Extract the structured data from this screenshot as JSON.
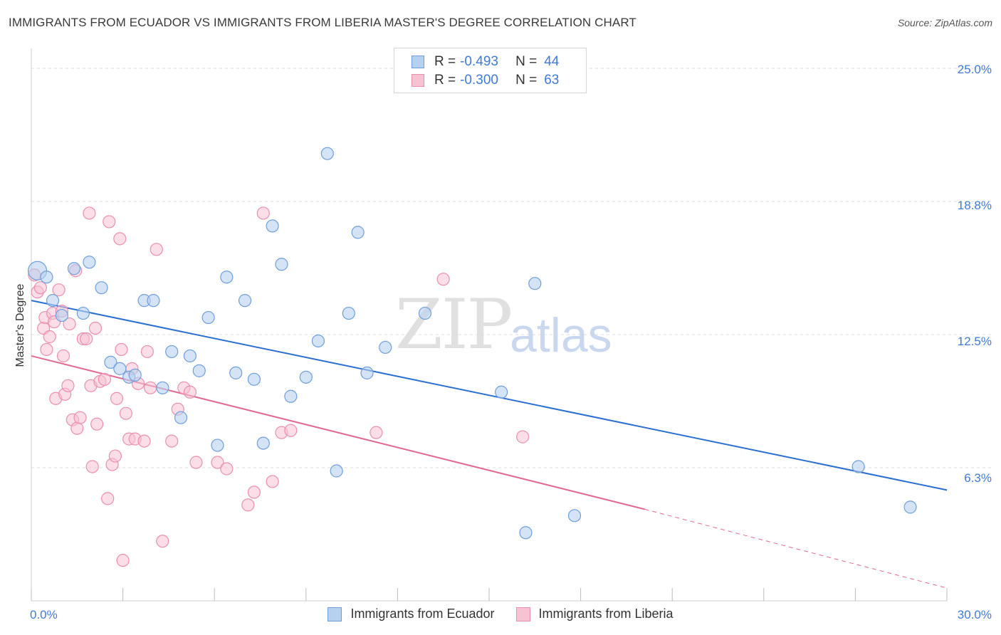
{
  "header": {
    "title": "IMMIGRANTS FROM ECUADOR VS IMMIGRANTS FROM LIBERIA MASTER'S DEGREE CORRELATION CHART",
    "source": "Source: ZipAtlas.com"
  },
  "watermark": {
    "zip": "ZIP",
    "atlas": "atlas"
  },
  "legend": {
    "rows": [
      {
        "r_label": "R =",
        "r_value": "-0.493",
        "n_label": "N =",
        "n_value": "44"
      },
      {
        "r_label": "R =",
        "r_value": "-0.300",
        "n_label": "N =",
        "n_value": "63"
      }
    ]
  },
  "bottom_legend": {
    "ecuador": "Immigrants from Ecuador",
    "liberia": "Immigrants from Liberia"
  },
  "axis": {
    "ylabel": "Master's Degree",
    "y_ticks": [
      "25.0%",
      "18.8%",
      "12.5%",
      "6.3%"
    ],
    "x_min_label": "0.0%",
    "x_max_label": "30.0%"
  },
  "colors": {
    "ecuador_fill": "#b8d0f0",
    "ecuador_stroke": "#6f9fd8",
    "ecuador_line": "#2b6fd0",
    "liberia_fill": "#f7c3d3",
    "liberia_stroke": "#e98fae",
    "liberia_line": "#e06a93",
    "grid": "#dcdcdc",
    "tick_text": "#3f7ad4"
  },
  "chart_data": {
    "type": "scatter",
    "title": "IMMIGRANTS FROM ECUADOR VS IMMIGRANTS FROM LIBERIA MASTER'S DEGREE CORRELATION CHART",
    "xlabel": "",
    "ylabel": "Master's Degree",
    "xlim": [
      0,
      30
    ],
    "ylim": [
      0,
      25
    ],
    "y_gridlines": [
      6.25,
      12.5,
      18.75,
      25.0
    ],
    "grid": true,
    "series": [
      {
        "name": "Immigrants from Ecuador",
        "r": -0.493,
        "n": 44,
        "trend": {
          "x": [
            0,
            30
          ],
          "y": [
            14.1,
            5.2
          ]
        },
        "points": [
          [
            0.2,
            15.5
          ],
          [
            0.5,
            15.2
          ],
          [
            0.7,
            14.1
          ],
          [
            1.0,
            13.4
          ],
          [
            1.4,
            15.6
          ],
          [
            1.7,
            13.5
          ],
          [
            1.9,
            15.9
          ],
          [
            2.3,
            14.7
          ],
          [
            2.6,
            11.2
          ],
          [
            2.9,
            10.9
          ],
          [
            3.2,
            10.5
          ],
          [
            3.4,
            10.6
          ],
          [
            3.7,
            14.1
          ],
          [
            4.0,
            14.1
          ],
          [
            4.3,
            10.0
          ],
          [
            4.6,
            11.7
          ],
          [
            4.9,
            8.6
          ],
          [
            5.2,
            11.5
          ],
          [
            5.5,
            10.8
          ],
          [
            5.8,
            13.3
          ],
          [
            6.1,
            7.3
          ],
          [
            6.4,
            15.2
          ],
          [
            6.7,
            10.7
          ],
          [
            7.0,
            14.1
          ],
          [
            7.3,
            10.4
          ],
          [
            7.6,
            7.4
          ],
          [
            7.9,
            17.6
          ],
          [
            8.2,
            15.8
          ],
          [
            8.5,
            9.6
          ],
          [
            9.0,
            10.5
          ],
          [
            9.4,
            12.2
          ],
          [
            9.7,
            21.0
          ],
          [
            10.0,
            6.1
          ],
          [
            10.4,
            13.5
          ],
          [
            10.7,
            17.3
          ],
          [
            11.0,
            10.7
          ],
          [
            11.6,
            11.9
          ],
          [
            12.9,
            13.5
          ],
          [
            15.4,
            9.8
          ],
          [
            16.2,
            3.2
          ],
          [
            16.5,
            14.9
          ],
          [
            17.8,
            4.0
          ],
          [
            27.1,
            6.3
          ],
          [
            28.8,
            4.4
          ]
        ]
      },
      {
        "name": "Immigrants from Liberia",
        "r": -0.3,
        "n": 63,
        "trend": {
          "x": [
            0,
            20.1
          ],
          "y": [
            11.5,
            4.3
          ]
        },
        "trend_dashed": {
          "x": [
            20.1,
            30
          ],
          "y": [
            4.3,
            0.6
          ]
        },
        "points": [
          [
            0.1,
            15.3
          ],
          [
            0.2,
            14.5
          ],
          [
            0.3,
            14.7
          ],
          [
            0.4,
            12.8
          ],
          [
            0.45,
            13.3
          ],
          [
            0.5,
            11.8
          ],
          [
            0.6,
            12.4
          ],
          [
            0.7,
            13.5
          ],
          [
            0.75,
            13.1
          ],
          [
            0.8,
            9.5
          ],
          [
            0.9,
            14.6
          ],
          [
            1.0,
            13.6
          ],
          [
            1.05,
            11.5
          ],
          [
            1.1,
            9.7
          ],
          [
            1.2,
            10.1
          ],
          [
            1.25,
            13.0
          ],
          [
            1.35,
            8.5
          ],
          [
            1.45,
            15.5
          ],
          [
            1.5,
            8.1
          ],
          [
            1.6,
            8.6
          ],
          [
            1.7,
            12.3
          ],
          [
            1.8,
            12.3
          ],
          [
            1.9,
            18.2
          ],
          [
            1.95,
            10.1
          ],
          [
            2.0,
            6.3
          ],
          [
            2.1,
            12.8
          ],
          [
            2.15,
            8.3
          ],
          [
            2.25,
            10.3
          ],
          [
            2.4,
            10.4
          ],
          [
            2.5,
            4.8
          ],
          [
            2.55,
            17.8
          ],
          [
            2.65,
            6.4
          ],
          [
            2.75,
            6.8
          ],
          [
            2.8,
            9.5
          ],
          [
            2.9,
            17.0
          ],
          [
            2.95,
            11.8
          ],
          [
            3.0,
            1.9
          ],
          [
            3.1,
            8.8
          ],
          [
            3.2,
            7.6
          ],
          [
            3.3,
            10.9
          ],
          [
            3.4,
            7.6
          ],
          [
            3.5,
            10.2
          ],
          [
            3.7,
            7.5
          ],
          [
            3.8,
            11.7
          ],
          [
            3.9,
            10.0
          ],
          [
            4.1,
            16.5
          ],
          [
            4.3,
            2.8
          ],
          [
            4.6,
            7.5
          ],
          [
            4.8,
            9.0
          ],
          [
            5.0,
            10.0
          ],
          [
            5.2,
            9.8
          ],
          [
            5.4,
            6.5
          ],
          [
            6.1,
            6.5
          ],
          [
            6.4,
            6.2
          ],
          [
            7.1,
            4.5
          ],
          [
            7.3,
            5.1
          ],
          [
            7.6,
            18.2
          ],
          [
            7.9,
            5.6
          ],
          [
            8.2,
            7.9
          ],
          [
            8.5,
            8.0
          ],
          [
            11.3,
            7.9
          ],
          [
            13.5,
            15.1
          ],
          [
            16.1,
            7.7
          ]
        ]
      }
    ]
  }
}
